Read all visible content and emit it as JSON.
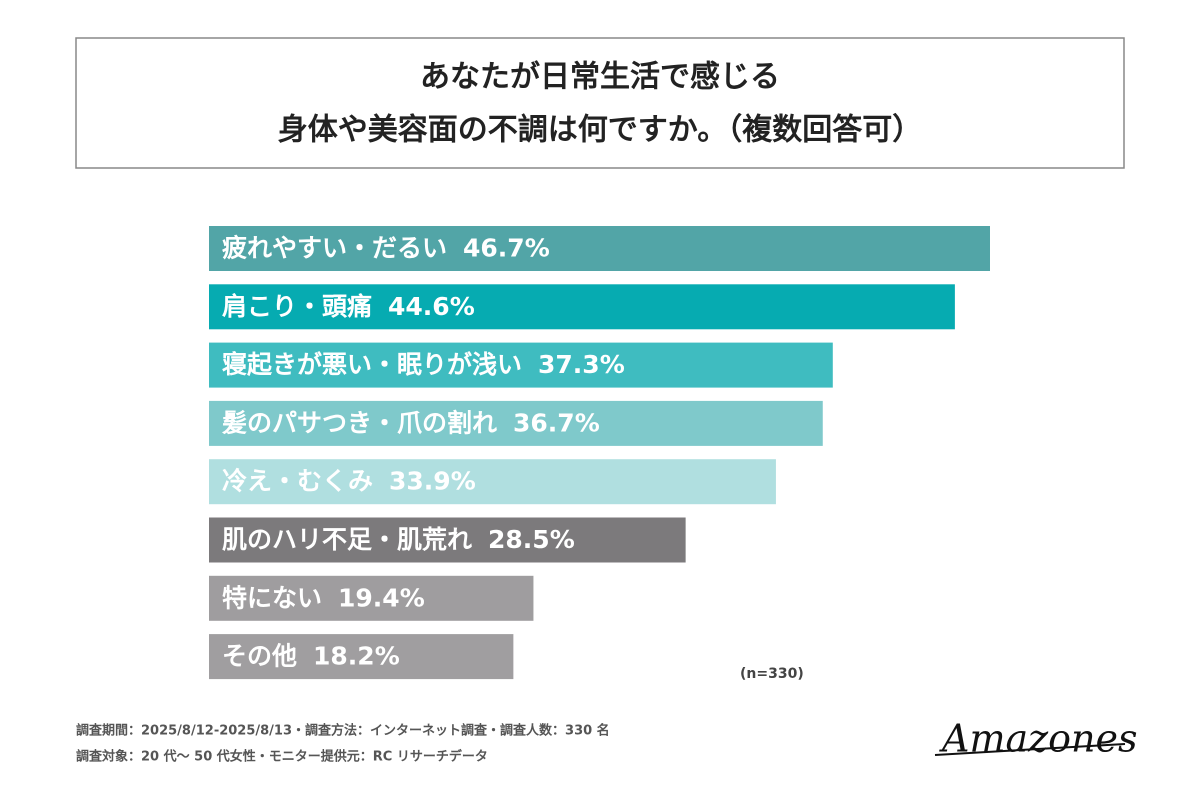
{
  "chart_data": {
    "type": "bar",
    "orientation": "horizontal",
    "title_lines": [
      "あなたが日常生活で感じる",
      "身体や美容面の不調は何ですか。（複数回答可）"
    ],
    "categories": [
      "疲れやすい・だるい",
      "肩こり・頭痛",
      "寝起きが悪い・眠りが浅い",
      "髪のパサつき・爪の割れ",
      "冷え・むくみ",
      "肌のハリ不足・肌荒れ",
      "特にない",
      "その他"
    ],
    "values": [
      46.7,
      44.6,
      37.3,
      36.7,
      33.9,
      28.5,
      19.4,
      18.2
    ],
    "value_labels": [
      "46.7%",
      "44.6%",
      "37.3%",
      "36.7%",
      "33.9%",
      "28.5%",
      "19.4%",
      "18.2%"
    ],
    "colors": [
      "#52a5a7",
      "#06abb1",
      "#3fbcc0",
      "#7fc9cb",
      "#b0dfe0",
      "#7c7a7c",
      "#9f9d9f",
      "#a09ea0"
    ],
    "note": "(n=330)",
    "footer": [
      "調査期間：2025/8/12-2025/8/13・調査方法：インターネット調査・調査人数：330 名",
      "調査対象：20 代〜 50 代女性・モニター提供元：RC リサーチデータ"
    ],
    "logo": "Amazones"
  }
}
